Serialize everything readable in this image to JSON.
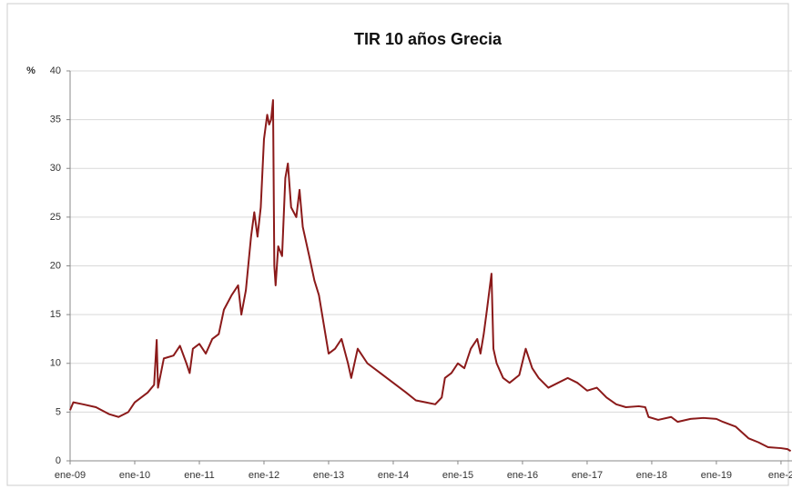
{
  "chart_data": {
    "type": "line",
    "title": "TIR 10 años Grecia",
    "ylabel": "%",
    "x": [
      2009.0,
      2009.05,
      2009.2,
      2009.4,
      2009.6,
      2009.75,
      2009.9,
      2010.0,
      2010.1,
      2010.2,
      2010.3,
      2010.34,
      2010.36,
      2010.45,
      2010.6,
      2010.7,
      2010.8,
      2010.85,
      2010.9,
      2011.0,
      2011.1,
      2011.2,
      2011.3,
      2011.38,
      2011.5,
      2011.6,
      2011.65,
      2011.72,
      2011.8,
      2011.85,
      2011.9,
      2011.95,
      2012.0,
      2012.05,
      2012.08,
      2012.11,
      2012.14,
      2012.16,
      2012.18,
      2012.22,
      2012.28,
      2012.33,
      2012.37,
      2012.42,
      2012.5,
      2012.55,
      2012.6,
      2012.7,
      2012.78,
      2012.85,
      2012.95,
      2013.0,
      2013.1,
      2013.2,
      2013.3,
      2013.35,
      2013.45,
      2013.6,
      2013.8,
      2014.0,
      2014.2,
      2014.35,
      2014.5,
      2014.65,
      2014.75,
      2014.8,
      2014.9,
      2015.0,
      2015.1,
      2015.2,
      2015.3,
      2015.35,
      2015.4,
      2015.45,
      2015.52,
      2015.55,
      2015.6,
      2015.7,
      2015.8,
      2015.95,
      2016.05,
      2016.15,
      2016.25,
      2016.4,
      2016.55,
      2016.7,
      2016.85,
      2017.0,
      2017.15,
      2017.3,
      2017.45,
      2017.6,
      2017.8,
      2017.9,
      2017.95,
      2018.1,
      2018.3,
      2018.4,
      2018.6,
      2018.8,
      2019.0,
      2019.1,
      2019.3,
      2019.5,
      2019.65,
      2019.8,
      2020.0,
      2020.1,
      2020.15
    ],
    "values": [
      5.2,
      6.0,
      5.8,
      5.5,
      4.8,
      4.5,
      5.0,
      6.0,
      6.5,
      7.0,
      7.8,
      12.4,
      7.5,
      10.5,
      10.8,
      11.8,
      10.0,
      9.0,
      11.5,
      12.0,
      11.0,
      12.5,
      13.0,
      15.5,
      17.0,
      18.0,
      15.0,
      17.5,
      23.0,
      25.5,
      23.0,
      26.0,
      33.0,
      35.5,
      34.5,
      35.0,
      37.0,
      20.0,
      18.0,
      22.0,
      21.0,
      29.0,
      30.5,
      26.0,
      25.0,
      27.8,
      24.0,
      21.0,
      18.5,
      17.0,
      13.0,
      11.0,
      11.5,
      12.5,
      10.0,
      8.5,
      11.5,
      10.0,
      9.0,
      8.0,
      7.0,
      6.2,
      6.0,
      5.8,
      6.5,
      8.5,
      9.0,
      10.0,
      9.5,
      11.5,
      12.5,
      11.0,
      13.0,
      15.5,
      19.2,
      11.5,
      10.0,
      8.5,
      8.0,
      8.8,
      11.5,
      9.5,
      8.5,
      7.5,
      8.0,
      8.5,
      8.0,
      7.2,
      7.5,
      6.5,
      5.8,
      5.5,
      5.6,
      5.5,
      4.5,
      4.2,
      4.5,
      4.0,
      4.3,
      4.4,
      4.3,
      4.0,
      3.5,
      2.3,
      1.9,
      1.4,
      1.3,
      1.2,
      1.0
    ],
    "color": "#8b1a1a",
    "xlim": [
      2009,
      2020.17
    ],
    "xticks": [
      {
        "value": 2009,
        "label": "ene-09"
      },
      {
        "value": 2010,
        "label": "ene-10"
      },
      {
        "value": 2011,
        "label": "ene-11"
      },
      {
        "value": 2012,
        "label": "ene-12"
      },
      {
        "value": 2013,
        "label": "ene-13"
      },
      {
        "value": 2014,
        "label": "ene-14"
      },
      {
        "value": 2015,
        "label": "ene-15"
      },
      {
        "value": 2016,
        "label": "ene-16"
      },
      {
        "value": 2017,
        "label": "ene-17"
      },
      {
        "value": 2018,
        "label": "ene-18"
      },
      {
        "value": 2019,
        "label": "ene-19"
      },
      {
        "value": 2020,
        "label": "ene-2"
      }
    ],
    "ylim": [
      0,
      40
    ],
    "yticks": [
      0,
      5,
      10,
      15,
      20,
      25,
      30,
      35,
      40
    ],
    "grid": true
  }
}
